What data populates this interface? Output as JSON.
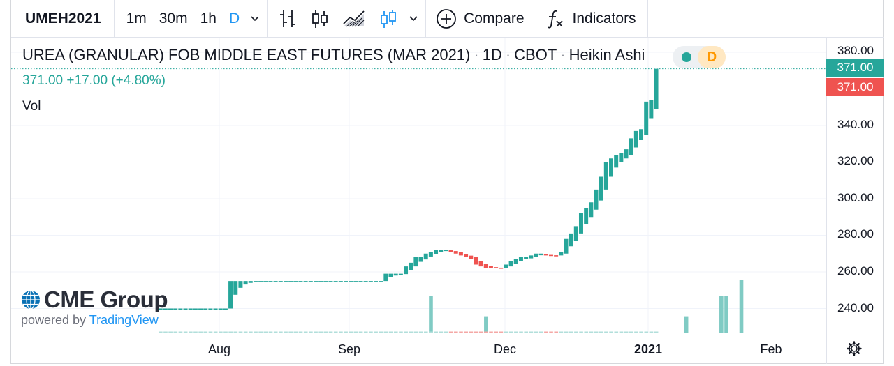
{
  "toolbar": {
    "symbol": "UMEH2021",
    "intervals": [
      "1m",
      "30m",
      "1h",
      "D"
    ],
    "active_interval": "D",
    "compare_label": "Compare",
    "indicators_label": "Indicators"
  },
  "legend": {
    "title": "UREA (GRANULAR) FOB MIDDLE EAST FUTURES (MAR 2021)",
    "interval": "1D",
    "exchange": "CBOT",
    "chart_style": "Heikin Ashi",
    "status_badge": "D",
    "last": "371.00",
    "change": "+17.00",
    "change_pct": "(+4.80%)",
    "volume_label": "Vol"
  },
  "watermark": {
    "brand": "CME Group",
    "powered_by": "powered by",
    "provider": "TradingView"
  },
  "colors": {
    "up": "#26a69a",
    "down": "#ef5350",
    "up_volume": "#80cbc4",
    "accent": "#2196f3",
    "badge": "#ff9800"
  },
  "axis": {
    "price_ticks": [
      "380.00",
      "371.00",
      "371.00",
      "340.00",
      "320.00",
      "300.00",
      "280.00",
      "260.00",
      "240.00"
    ],
    "price_label_green": "371.00",
    "price_label_red": "371.00",
    "time_ticks": [
      "Aug",
      "Sep",
      "Dec",
      "2021",
      "Feb"
    ]
  },
  "chart_data": {
    "type": "candlestick",
    "style": "Heikin Ashi",
    "title": "UREA (GRANULAR) FOB MIDDLE EAST FUTURES (MAR 2021)",
    "ylim": [
      225,
      385
    ],
    "y_ticks": [
      240,
      260,
      280,
      300,
      320,
      340,
      380
    ],
    "x_ticks": [
      "Aug",
      "Sep",
      "Dec",
      "2021",
      "Feb"
    ],
    "last_price": 371.0,
    "grid": true,
    "candles": [
      {
        "o": 240,
        "c": 240
      },
      {
        "o": 240,
        "c": 240
      },
      {
        "o": 240,
        "c": 240
      },
      {
        "o": 240,
        "c": 240
      },
      {
        "o": 240,
        "c": 240
      },
      {
        "o": 240,
        "c": 240
      },
      {
        "o": 240,
        "c": 240
      },
      {
        "o": 240,
        "c": 240
      },
      {
        "o": 240,
        "c": 240
      },
      {
        "o": 240,
        "c": 240
      },
      {
        "o": 240,
        "c": 240
      },
      {
        "o": 240,
        "c": 240
      },
      {
        "o": 240,
        "c": 240
      },
      {
        "o": 240,
        "c": 240
      },
      {
        "o": 240,
        "c": 255
      },
      {
        "o": 247.5,
        "c": 255
      },
      {
        "o": 251.3,
        "c": 255
      },
      {
        "o": 253.1,
        "c": 255
      },
      {
        "o": 254,
        "c": 255
      },
      {
        "o": 254.5,
        "c": 255
      },
      {
        "o": 255,
        "c": 255
      },
      {
        "o": 255,
        "c": 255
      },
      {
        "o": 255,
        "c": 255
      },
      {
        "o": 255,
        "c": 255
      },
      {
        "o": 255,
        "c": 255
      },
      {
        "o": 255,
        "c": 255
      },
      {
        "o": 255,
        "c": 255
      },
      {
        "o": 255,
        "c": 255
      },
      {
        "o": 255,
        "c": 255
      },
      {
        "o": 255,
        "c": 255
      },
      {
        "o": 255,
        "c": 255
      },
      {
        "o": 255,
        "c": 255
      },
      {
        "o": 255,
        "c": 255
      },
      {
        "o": 255,
        "c": 255
      },
      {
        "o": 255,
        "c": 255
      },
      {
        "o": 255,
        "c": 255
      },
      {
        "o": 255,
        "c": 255
      },
      {
        "o": 255,
        "c": 255
      },
      {
        "o": 255,
        "c": 255
      },
      {
        "o": 255,
        "c": 255
      },
      {
        "o": 255,
        "c": 255
      },
      {
        "o": 255,
        "c": 255
      },
      {
        "o": 255,
        "c": 255
      },
      {
        "o": 255,
        "c": 255
      },
      {
        "o": 255,
        "c": 255
      },
      {
        "o": 255,
        "c": 259
      },
      {
        "o": 257,
        "c": 259
      },
      {
        "o": 258,
        "c": 259
      },
      {
        "o": 258.5,
        "c": 259
      },
      {
        "o": 258.8,
        "c": 263
      },
      {
        "o": 261,
        "c": 265
      },
      {
        "o": 263,
        "c": 268
      },
      {
        "o": 265.5,
        "c": 268
      },
      {
        "o": 266.8,
        "c": 270
      },
      {
        "o": 268.4,
        "c": 271
      },
      {
        "o": 269.7,
        "c": 272
      },
      {
        "o": 270.9,
        "c": 272
      },
      {
        "o": 271.5,
        "c": 272
      },
      {
        "o": 271.8,
        "c": 271
      },
      {
        "o": 271.4,
        "c": 270
      },
      {
        "o": 270.7,
        "c": 269
      },
      {
        "o": 269.9,
        "c": 268
      },
      {
        "o": 268.9,
        "c": 267
      },
      {
        "o": 268,
        "c": 264
      },
      {
        "o": 266,
        "c": 263
      },
      {
        "o": 264.5,
        "c": 262
      },
      {
        "o": 263.3,
        "c": 262
      },
      {
        "o": 262.6,
        "c": 262
      },
      {
        "o": 262.3,
        "c": 262
      },
      {
        "o": 262,
        "c": 264
      },
      {
        "o": 263,
        "c": 266
      },
      {
        "o": 264.5,
        "c": 267
      },
      {
        "o": 265.8,
        "c": 268
      },
      {
        "o": 266.9,
        "c": 268
      },
      {
        "o": 267.4,
        "c": 269
      },
      {
        "o": 268.2,
        "c": 270
      },
      {
        "o": 269.1,
        "c": 270
      },
      {
        "o": 269.6,
        "c": 269
      },
      {
        "o": 269.3,
        "c": 269
      },
      {
        "o": 269.1,
        "c": 269
      },
      {
        "o": 269,
        "c": 271
      },
      {
        "o": 270,
        "c": 278
      },
      {
        "o": 274,
        "c": 281
      },
      {
        "o": 277,
        "c": 285
      },
      {
        "o": 281,
        "c": 292
      },
      {
        "o": 286,
        "c": 295
      },
      {
        "o": 290,
        "c": 298
      },
      {
        "o": 294,
        "c": 305
      },
      {
        "o": 299,
        "c": 312
      },
      {
        "o": 305,
        "c": 320
      },
      {
        "o": 312,
        "c": 322
      },
      {
        "o": 317,
        "c": 324
      },
      {
        "o": 320,
        "c": 325
      },
      {
        "o": 322,
        "c": 327
      },
      {
        "o": 324,
        "c": 333
      },
      {
        "o": 328,
        "c": 337
      },
      {
        "o": 332,
        "c": 338
      },
      {
        "o": 335,
        "c": 353
      },
      {
        "o": 344,
        "c": 354
      },
      {
        "o": 349,
        "c": 371
      }
    ],
    "volume_bars": [
      {
        "index": 54,
        "value": 1
      },
      {
        "index": 65,
        "value": 0.45
      },
      {
        "index": 105,
        "value": 0.45
      },
      {
        "index": 112,
        "value": 1
      },
      {
        "index": 113,
        "value": 1
      },
      {
        "index": 116,
        "value": 1.45
      }
    ]
  }
}
